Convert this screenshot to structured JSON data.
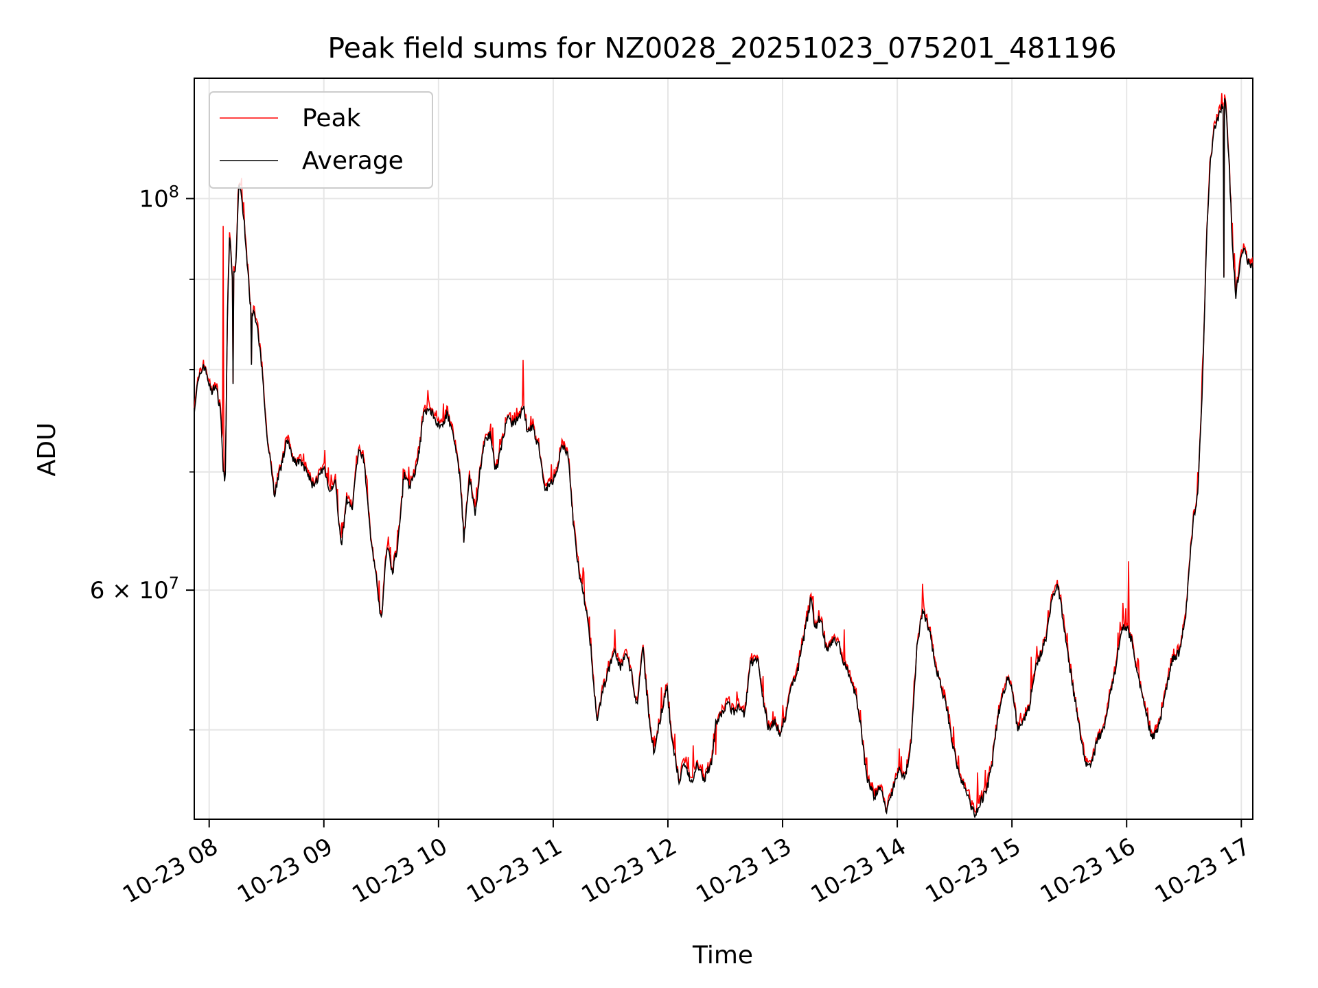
{
  "chart_data": {
    "type": "line",
    "title": "Peak field sums for NZ0028_20251023_075201_481196",
    "xlabel": "Time",
    "ylabel": "ADU",
    "y_scale": "log",
    "ylim": [
      44500000,
      117000000
    ],
    "xlim_hours": [
      7.87,
      17.1
    ],
    "x_ticks": [
      {
        "hour": 8,
        "label": "10-23 08"
      },
      {
        "hour": 9,
        "label": "10-23 09"
      },
      {
        "hour": 10,
        "label": "10-23 10"
      },
      {
        "hour": 11,
        "label": "10-23 11"
      },
      {
        "hour": 12,
        "label": "10-23 12"
      },
      {
        "hour": 13,
        "label": "10-23 13"
      },
      {
        "hour": 14,
        "label": "10-23 14"
      },
      {
        "hour": 15,
        "label": "10-23 15"
      },
      {
        "hour": 16,
        "label": "10-23 16"
      },
      {
        "hour": 17,
        "label": "10-23 17"
      }
    ],
    "y_major_ticks": [
      {
        "value": 60000000,
        "base": "6 × 10",
        "exp": "7"
      },
      {
        "value": 100000000,
        "base": "10",
        "exp": "8"
      }
    ],
    "y_minor_ticks": [
      50000000,
      70000000,
      80000000,
      90000000
    ],
    "grid": true,
    "legend_position": "top-left",
    "series": [
      {
        "name": "Peak",
        "color": "#ff0000",
        "spikes": [
          [
            8.27,
            101800000
          ],
          [
            8.12,
            96500000
          ],
          [
            10.74,
            81000000
          ],
          [
            11.26,
            61800000
          ],
          [
            12.22,
            49000000
          ],
          [
            12.42,
            48400000
          ],
          [
            13.54,
            57000000
          ],
          [
            14.22,
            60500000
          ],
          [
            14.7,
            47300000
          ],
          [
            15.17,
            55000000
          ],
          [
            15.2,
            53700000
          ],
          [
            16.02,
            62300000
          ],
          [
            15.97,
            59000000
          ],
          [
            16.85,
            116000000
          ]
        ]
      },
      {
        "name": "Average",
        "color": "#000000",
        "dips": [
          [
            16.85,
            90200000
          ],
          [
            8.37,
            80500000
          ],
          [
            8.21,
            78500000
          ]
        ]
      }
    ],
    "base_profile": [
      [
        7.87,
        76000000
      ],
      [
        7.9,
        78500000
      ],
      [
        7.95,
        80500000
      ],
      [
        7.98,
        79500000
      ],
      [
        8.02,
        77500000
      ],
      [
        8.05,
        78500000
      ],
      [
        8.08,
        77000000
      ],
      [
        8.1,
        76000000
      ],
      [
        8.12,
        70500000
      ],
      [
        8.14,
        69000000
      ],
      [
        8.16,
        86000000
      ],
      [
        8.18,
        96000000
      ],
      [
        8.2,
        90000000
      ],
      [
        8.23,
        91000000
      ],
      [
        8.26,
        102500000
      ],
      [
        8.3,
        98000000
      ],
      [
        8.33,
        92000000
      ],
      [
        8.36,
        87000000
      ],
      [
        8.39,
        86000000
      ],
      [
        8.42,
        84500000
      ],
      [
        8.46,
        80000000
      ],
      [
        8.5,
        74000000
      ],
      [
        8.54,
        70500000
      ],
      [
        8.57,
        67900000
      ],
      [
        8.6,
        69500000
      ],
      [
        8.63,
        70500000
      ],
      [
        8.67,
        72800000
      ],
      [
        8.7,
        72600000
      ],
      [
        8.74,
        71000000
      ],
      [
        8.8,
        70800000
      ],
      [
        8.85,
        70000000
      ],
      [
        8.9,
        68800000
      ],
      [
        8.95,
        69400000
      ],
      [
        9.0,
        70300000
      ],
      [
        9.05,
        68000000
      ],
      [
        9.1,
        69300000
      ],
      [
        9.15,
        63500000
      ],
      [
        9.2,
        67500000
      ],
      [
        9.25,
        67000000
      ],
      [
        9.3,
        72000000
      ],
      [
        9.35,
        71000000
      ],
      [
        9.4,
        65000000
      ],
      [
        9.45,
        61500000
      ],
      [
        9.5,
        57600000
      ],
      [
        9.55,
        63500000
      ],
      [
        9.6,
        61500000
      ],
      [
        9.65,
        64000000
      ],
      [
        9.7,
        70000000
      ],
      [
        9.75,
        68500000
      ],
      [
        9.82,
        71000000
      ],
      [
        9.87,
        75500000
      ],
      [
        9.92,
        76000000
      ],
      [
        9.97,
        75000000
      ],
      [
        10.02,
        74200000
      ],
      [
        10.07,
        75500000
      ],
      [
        10.12,
        74000000
      ],
      [
        10.17,
        71000000
      ],
      [
        10.2,
        68000000
      ],
      [
        10.22,
        64000000
      ],
      [
        10.27,
        69500000
      ],
      [
        10.32,
        66000000
      ],
      [
        10.36,
        70000000
      ],
      [
        10.4,
        72800000
      ],
      [
        10.45,
        73500000
      ],
      [
        10.5,
        70000000
      ],
      [
        10.55,
        72500000
      ],
      [
        10.6,
        75000000
      ],
      [
        10.65,
        74500000
      ],
      [
        10.7,
        75000000
      ],
      [
        10.74,
        76500000
      ],
      [
        10.77,
        74000000
      ],
      [
        10.82,
        74200000
      ],
      [
        10.88,
        72000000
      ],
      [
        10.93,
        68500000
      ],
      [
        10.98,
        68900000
      ],
      [
        11.03,
        70000000
      ],
      [
        11.08,
        72500000
      ],
      [
        11.13,
        71500000
      ],
      [
        11.18,
        65000000
      ],
      [
        11.23,
        61000000
      ],
      [
        11.28,
        59000000
      ],
      [
        11.33,
        55500000
      ],
      [
        11.38,
        50500000
      ],
      [
        11.43,
        52500000
      ],
      [
        11.48,
        54000000
      ],
      [
        11.53,
        55500000
      ],
      [
        11.58,
        54200000
      ],
      [
        11.63,
        55200000
      ],
      [
        11.68,
        54000000
      ],
      [
        11.73,
        51500000
      ],
      [
        11.78,
        55800000
      ],
      [
        11.83,
        51200000
      ],
      [
        11.88,
        48500000
      ],
      [
        11.94,
        51000000
      ],
      [
        11.99,
        53000000
      ],
      [
        12.04,
        49000000
      ],
      [
        12.1,
        46700000
      ],
      [
        12.15,
        48000000
      ],
      [
        12.2,
        46600000
      ],
      [
        12.25,
        47700000
      ],
      [
        12.32,
        46800000
      ],
      [
        12.38,
        48000000
      ],
      [
        12.42,
        50500000
      ],
      [
        12.47,
        51000000
      ],
      [
        12.52,
        51800000
      ],
      [
        12.57,
        51200000
      ],
      [
        12.62,
        51500000
      ],
      [
        12.67,
        51000000
      ],
      [
        12.72,
        54500000
      ],
      [
        12.78,
        55000000
      ],
      [
        12.83,
        52000000
      ],
      [
        12.88,
        50000000
      ],
      [
        12.93,
        50500000
      ],
      [
        12.98,
        49800000
      ],
      [
        13.03,
        51000000
      ],
      [
        13.08,
        53000000
      ],
      [
        13.13,
        54000000
      ],
      [
        13.18,
        56200000
      ],
      [
        13.25,
        59500000
      ],
      [
        13.28,
        57000000
      ],
      [
        13.33,
        58000000
      ],
      [
        13.38,
        55500000
      ],
      [
        13.43,
        56000000
      ],
      [
        13.48,
        56200000
      ],
      [
        13.53,
        54700000
      ],
      [
        13.58,
        53800000
      ],
      [
        13.63,
        52500000
      ],
      [
        13.68,
        50500000
      ],
      [
        13.73,
        47000000
      ],
      [
        13.8,
        45800000
      ],
      [
        13.85,
        46500000
      ],
      [
        13.9,
        45000000
      ],
      [
        13.96,
        46200000
      ],
      [
        14.02,
        47500000
      ],
      [
        14.07,
        47000000
      ],
      [
        14.12,
        49000000
      ],
      [
        14.17,
        55500000
      ],
      [
        14.22,
        58500000
      ],
      [
        14.28,
        57000000
      ],
      [
        14.33,
        54500000
      ],
      [
        14.38,
        53000000
      ],
      [
        14.43,
        51500000
      ],
      [
        14.48,
        49000000
      ],
      [
        14.53,
        47500000
      ],
      [
        14.58,
        46500000
      ],
      [
        14.63,
        45500000
      ],
      [
        14.68,
        44700000
      ],
      [
        14.73,
        45500000
      ],
      [
        14.78,
        46200000
      ],
      [
        14.83,
        48000000
      ],
      [
        14.88,
        51000000
      ],
      [
        14.93,
        52500000
      ],
      [
        14.97,
        53700000
      ],
      [
        15.0,
        52800000
      ],
      [
        15.05,
        50000000
      ],
      [
        15.1,
        50500000
      ],
      [
        15.15,
        51500000
      ],
      [
        15.2,
        54000000
      ],
      [
        15.25,
        55200000
      ],
      [
        15.3,
        56500000
      ],
      [
        15.35,
        59500000
      ],
      [
        15.4,
        60500000
      ],
      [
        15.45,
        57500000
      ],
      [
        15.5,
        54500000
      ],
      [
        15.55,
        52000000
      ],
      [
        15.6,
        49500000
      ],
      [
        15.65,
        47800000
      ],
      [
        15.7,
        48000000
      ],
      [
        15.75,
        49500000
      ],
      [
        15.8,
        50000000
      ],
      [
        15.85,
        52000000
      ],
      [
        15.9,
        54000000
      ],
      [
        15.95,
        57000000
      ],
      [
        16.0,
        57200000
      ],
      [
        16.05,
        56000000
      ],
      [
        16.08,
        54500000
      ],
      [
        16.12,
        53000000
      ],
      [
        16.17,
        51000000
      ],
      [
        16.22,
        49500000
      ],
      [
        16.27,
        50000000
      ],
      [
        16.3,
        51000000
      ],
      [
        16.35,
        53000000
      ],
      [
        16.4,
        54800000
      ],
      [
        16.47,
        55500000
      ],
      [
        16.52,
        58500000
      ],
      [
        16.55,
        62500000
      ],
      [
        16.58,
        65500000
      ],
      [
        16.62,
        68000000
      ],
      [
        16.66,
        78000000
      ],
      [
        16.7,
        96000000
      ],
      [
        16.73,
        105000000
      ],
      [
        16.77,
        110000000
      ],
      [
        16.82,
        112000000
      ],
      [
        16.86,
        114000000
      ],
      [
        16.89,
        106000000
      ],
      [
        16.92,
        95000000
      ],
      [
        16.95,
        88000000
      ],
      [
        16.99,
        92000000
      ],
      [
        17.03,
        93500000
      ],
      [
        17.06,
        92000000
      ],
      [
        17.1,
        91500000
      ]
    ]
  }
}
